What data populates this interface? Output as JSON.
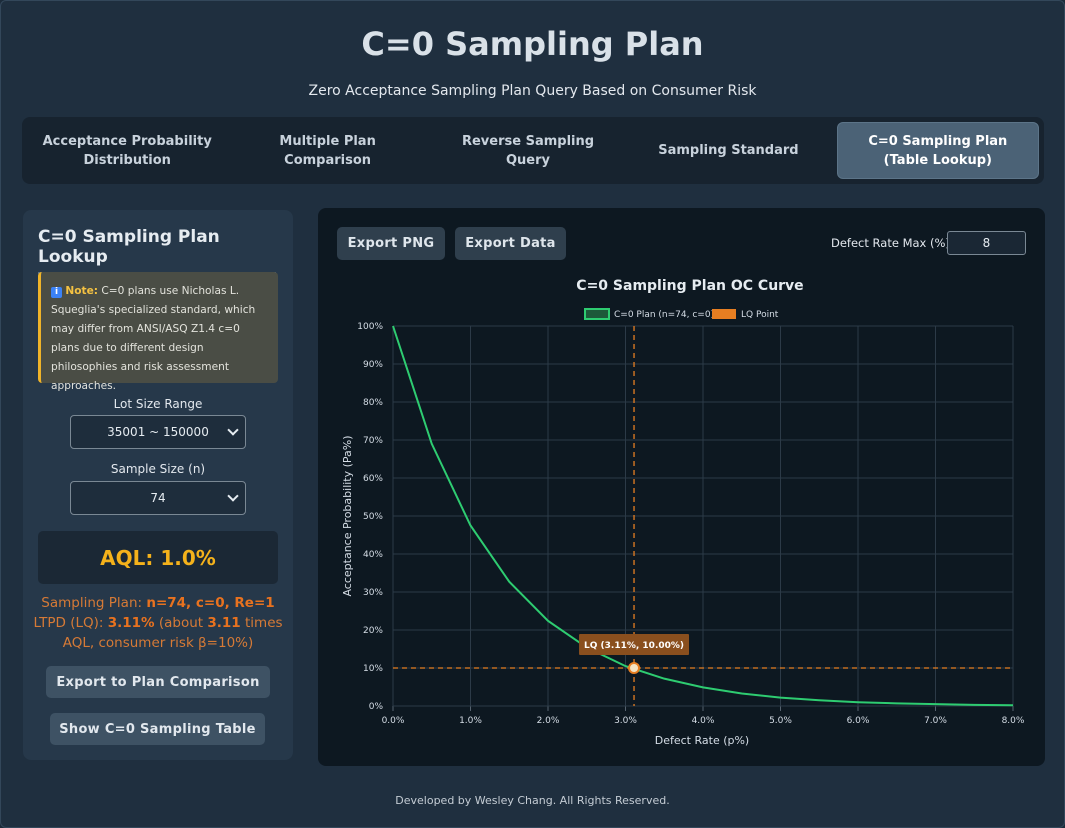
{
  "header": {
    "title": "C=0 Sampling Plan",
    "subtitle": "Zero Acceptance Sampling Plan Query Based on Consumer Risk"
  },
  "tabs": [
    {
      "label": "Acceptance Probability Distribution"
    },
    {
      "label": "Multiple Plan Comparison"
    },
    {
      "label": "Reverse Sampling Query"
    },
    {
      "label": "Sampling Standard"
    },
    {
      "label": "C=0 Sampling Plan (Table Lookup)",
      "active": true
    }
  ],
  "left_panel": {
    "title": "C=0 Sampling Plan Lookup",
    "note_icon": "info-icon",
    "note_title": "Note:",
    "note_text": "C=0 plans use Nicholas L. Squeglia's specialized standard, which may differ from ANSI/ASQ Z1.4 c=0 plans due to different design philosophies and risk assessment approaches.",
    "lot_size_label": "Lot Size Range",
    "lot_size_value": "35001 ~ 150000",
    "sample_size_label": "Sample Size (n)",
    "sample_size_value": "74",
    "aql_text": "AQL: 1.0%",
    "plan_prefix": "Sampling Plan: ",
    "plan_value": "n=74, c=0, Re=1",
    "ltpd_prefix": "LTPD (LQ): ",
    "ltpd_value": "3.11%",
    "ltpd_mid": " (about ",
    "ltpd_times": "3.11",
    "ltpd_suffix": " times AQL, consumer risk β=10%)",
    "export_button": "Export to Plan Comparison",
    "show_table_button": "Show C=0 Sampling Table"
  },
  "right_panel": {
    "export_png": "Export PNG",
    "export_data": "Export Data",
    "defect_max_label": "Defect Rate Max (%):",
    "defect_max_value": "8"
  },
  "chart_data": {
    "type": "line",
    "title": "C=0 Sampling Plan OC Curve",
    "xlabel": "Defect Rate (p%)",
    "ylabel": "Acceptance Probability (Pa%)",
    "xlim": [
      0,
      8
    ],
    "ylim": [
      0,
      100
    ],
    "x_ticks": [
      "0.0%",
      "1.0%",
      "2.0%",
      "3.0%",
      "4.0%",
      "5.0%",
      "6.0%",
      "7.0%",
      "8.0%"
    ],
    "y_ticks": [
      "0%",
      "10%",
      "20%",
      "30%",
      "40%",
      "50%",
      "60%",
      "70%",
      "80%",
      "90%",
      "100%"
    ],
    "legend_position": "top",
    "grid": true,
    "series": [
      {
        "name": "C=0 Plan (n=74, c=0)",
        "color": "#2ecc71",
        "x": [
          0,
          0.5,
          1,
          1.5,
          2,
          2.5,
          3,
          3.5,
          4,
          4.5,
          5,
          5.5,
          6,
          6.5,
          7,
          7.5,
          8
        ],
        "y": [
          100,
          69.0,
          47.5,
          32.7,
          22.4,
          15.4,
          10.5,
          7.2,
          4.9,
          3.3,
          2.2,
          1.5,
          1.0,
          0.7,
          0.5,
          0.3,
          0.2
        ]
      }
    ],
    "lq_point": {
      "name": "LQ Point",
      "color": "#e67e22",
      "x": 3.11,
      "y": 10.0,
      "label": "LQ (3.11%, 10.00%)"
    }
  },
  "footer": {
    "text": "Developed by Wesley Chang. All Rights Reserved."
  }
}
